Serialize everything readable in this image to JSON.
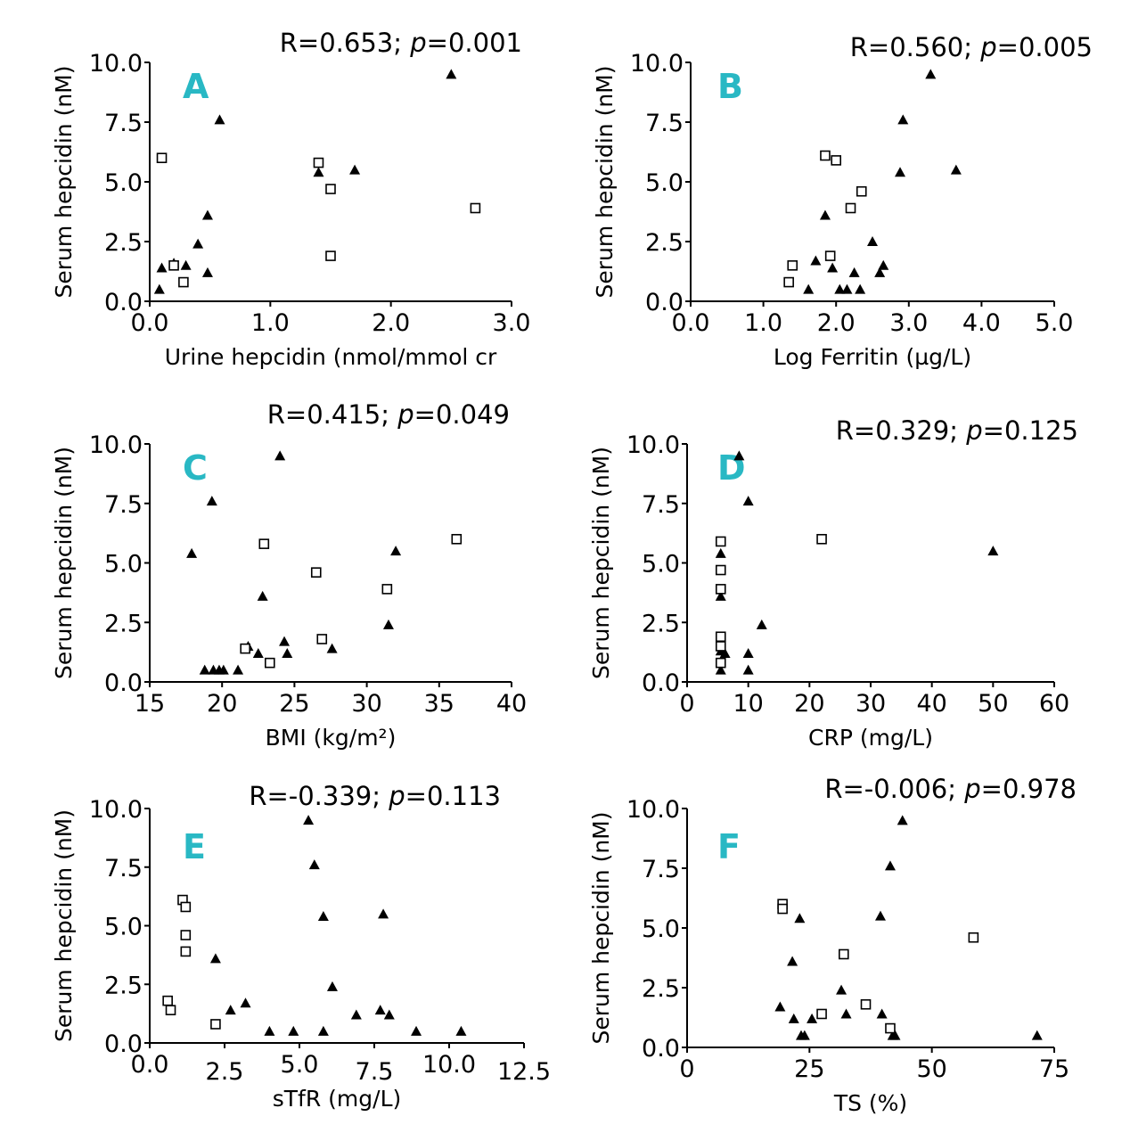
{
  "figure": {
    "colors": {
      "accent": "#29b8c4",
      "ink": "#000000",
      "background": "#ffffff"
    }
  },
  "chart_data": [
    {
      "type": "scatter",
      "panel": "A",
      "stat": {
        "r": "R=0.653;",
        "p_label": "p",
        "p_value": "=0.001"
      },
      "xlabel": "Urine hepcidin (nmol/mmol cr",
      "ylabel": "Serum hepcidin (nM)",
      "xlim": [
        0,
        3.0
      ],
      "ylim": [
        0,
        10.0
      ],
      "xticks": [
        0,
        1.0,
        2.0,
        3.0
      ],
      "xtick_labels": [
        "0.0",
        "1.0",
        "2.0",
        "3.0"
      ],
      "yticks": [
        0,
        2.5,
        5.0,
        7.5,
        10.0
      ],
      "ytick_labels": [
        "0.0",
        "2.5",
        "5.0",
        "7.5",
        "10.0"
      ],
      "series": [
        {
          "name": "filled triangles",
          "marker": "triangle",
          "points": [
            [
              0.08,
              0.5
            ],
            [
              0.1,
              1.4
            ],
            [
              0.2,
              1.6
            ],
            [
              0.3,
              1.5
            ],
            [
              0.4,
              2.4
            ],
            [
              0.48,
              3.6
            ],
            [
              0.48,
              1.2
            ],
            [
              0.58,
              7.6
            ],
            [
              1.4,
              5.4
            ],
            [
              1.7,
              5.5
            ],
            [
              2.5,
              9.5
            ]
          ]
        },
        {
          "name": "open squares",
          "marker": "square",
          "points": [
            [
              0.1,
              6.0
            ],
            [
              0.2,
              1.5
            ],
            [
              0.28,
              0.8
            ],
            [
              1.4,
              5.8
            ],
            [
              1.5,
              4.7
            ],
            [
              1.5,
              1.9
            ],
            [
              2.7,
              3.9
            ]
          ]
        }
      ]
    },
    {
      "type": "scatter",
      "panel": "B",
      "stat": {
        "r": "R=0.560;",
        "p_label": "p",
        "p_value": "=0.005"
      },
      "xlabel": "Log Ferritin (µg/L)",
      "ylabel": "Serum hepcidin (nM)",
      "xlim": [
        0,
        5.0
      ],
      "ylim": [
        0,
        10.0
      ],
      "xticks": [
        0,
        1.0,
        2.0,
        3.0,
        4.0,
        5.0
      ],
      "xtick_labels": [
        "0.0",
        "1.0",
        "2.0",
        "3.0",
        "4.0",
        "5.0"
      ],
      "yticks": [
        0,
        2.5,
        5.0,
        7.5,
        10.0
      ],
      "ytick_labels": [
        "0.0",
        "2.5",
        "5.0",
        "7.5",
        "10.0"
      ],
      "series": [
        {
          "name": "filled triangles",
          "marker": "triangle",
          "points": [
            [
              1.62,
              0.5
            ],
            [
              1.72,
              1.7
            ],
            [
              1.85,
              3.6
            ],
            [
              1.95,
              1.4
            ],
            [
              2.05,
              0.5
            ],
            [
              2.15,
              0.5
            ],
            [
              2.25,
              1.2
            ],
            [
              2.33,
              0.5
            ],
            [
              2.5,
              2.5
            ],
            [
              2.6,
              1.2
            ],
            [
              2.65,
              1.5
            ],
            [
              2.88,
              5.4
            ],
            [
              2.92,
              7.6
            ],
            [
              3.3,
              9.5
            ],
            [
              3.65,
              5.5
            ]
          ]
        },
        {
          "name": "open squares",
          "marker": "square",
          "points": [
            [
              1.35,
              0.8
            ],
            [
              1.4,
              1.5
            ],
            [
              1.85,
              6.1
            ],
            [
              1.92,
              1.9
            ],
            [
              2.0,
              5.9
            ],
            [
              2.2,
              3.9
            ],
            [
              2.35,
              4.6
            ]
          ]
        }
      ]
    },
    {
      "type": "scatter",
      "panel": "C",
      "stat": {
        "r": "R=0.415;",
        "p_label": "p",
        "p_value": "=0.049"
      },
      "xlabel": "BMI (kg/m²)",
      "ylabel": "Serum hepcidin (nM)",
      "xlim": [
        15,
        40
      ],
      "ylim": [
        0,
        10.0
      ],
      "xticks": [
        15,
        20,
        25,
        30,
        35,
        40
      ],
      "xtick_labels": [
        "15",
        "20",
        "25",
        "30",
        "35",
        "40"
      ],
      "yticks": [
        0,
        2.5,
        5.0,
        7.5,
        10.0
      ],
      "ytick_labels": [
        "0.0",
        "2.5",
        "5.0",
        "7.5",
        "10.0"
      ],
      "series": [
        {
          "name": "filled triangles",
          "marker": "triangle",
          "points": [
            [
              17.9,
              5.4
            ],
            [
              18.8,
              0.5
            ],
            [
              19.3,
              7.6
            ],
            [
              19.4,
              0.5
            ],
            [
              19.8,
              0.5
            ],
            [
              20.1,
              0.5
            ],
            [
              21.1,
              0.5
            ],
            [
              21.8,
              1.5
            ],
            [
              22.5,
              1.2
            ],
            [
              22.8,
              3.6
            ],
            [
              24.0,
              9.5
            ],
            [
              24.3,
              1.7
            ],
            [
              24.5,
              1.2
            ],
            [
              27.6,
              1.4
            ],
            [
              31.5,
              2.4
            ],
            [
              32.0,
              5.5
            ]
          ]
        },
        {
          "name": "open squares",
          "marker": "square",
          "points": [
            [
              21.6,
              1.4
            ],
            [
              22.9,
              5.8
            ],
            [
              23.3,
              0.8
            ],
            [
              26.5,
              4.6
            ],
            [
              26.9,
              1.8
            ],
            [
              31.4,
              3.9
            ],
            [
              36.2,
              6.0
            ]
          ]
        }
      ]
    },
    {
      "type": "scatter",
      "panel": "D",
      "stat": {
        "r": "R=0.329;",
        "p_label": "p",
        "p_value": "=0.125"
      },
      "xlabel": "CRP (mg/L)",
      "ylabel": "Serum hepcidin (nM)",
      "xlim": [
        0,
        60
      ],
      "ylim": [
        0,
        10.0
      ],
      "xticks": [
        0,
        10,
        20,
        30,
        40,
        50,
        60
      ],
      "xtick_labels": [
        "0",
        "10",
        "20",
        "30",
        "40",
        "50",
        "60"
      ],
      "yticks": [
        0,
        2.5,
        5.0,
        7.5,
        10.0
      ],
      "ytick_labels": [
        "0.0",
        "2.5",
        "5.0",
        "7.5",
        "10.0"
      ],
      "series": [
        {
          "name": "filled triangles",
          "marker": "triangle",
          "points": [
            [
              5.5,
              5.4
            ],
            [
              5.5,
              3.6
            ],
            [
              5.5,
              1.5
            ],
            [
              5.5,
              1.3
            ],
            [
              5.5,
              0.5
            ],
            [
              6.2,
              1.2
            ],
            [
              8.5,
              9.5
            ],
            [
              10.0,
              7.6
            ],
            [
              10.0,
              1.2
            ],
            [
              10.0,
              0.5
            ],
            [
              12.2,
              2.4
            ],
            [
              50.0,
              5.5
            ]
          ]
        },
        {
          "name": "open squares",
          "marker": "square",
          "points": [
            [
              5.5,
              5.9
            ],
            [
              5.5,
              4.7
            ],
            [
              5.5,
              3.9
            ],
            [
              5.5,
              1.9
            ],
            [
              5.5,
              1.5
            ],
            [
              5.5,
              0.8
            ],
            [
              22.0,
              6.0
            ]
          ]
        }
      ]
    },
    {
      "type": "scatter",
      "panel": "E",
      "stat": {
        "r": "R=-0.339;",
        "p_label": "p",
        "p_value": "=0.113"
      },
      "xlabel": "sTfR (mg/L)",
      "ylabel": "Serum hepcidin (nM)",
      "xlim": [
        0,
        12.5
      ],
      "ylim": [
        0,
        10.0
      ],
      "xticks": [
        0,
        2.5,
        5.0,
        7.5,
        10.0,
        12.5
      ],
      "xtick_labels": [
        "0.0",
        "2.5",
        "5.0",
        "7.5",
        "10.0",
        "12.5"
      ],
      "yticks": [
        0,
        2.5,
        5.0,
        7.5,
        10.0
      ],
      "ytick_labels": [
        "0.0",
        "2.5",
        "5.0",
        "7.5",
        "10.0"
      ],
      "series": [
        {
          "name": "filled triangles",
          "marker": "triangle",
          "points": [
            [
              2.2,
              3.6
            ],
            [
              2.7,
              1.4
            ],
            [
              3.2,
              1.7
            ],
            [
              4.0,
              0.5
            ],
            [
              4.8,
              0.5
            ],
            [
              5.3,
              9.5
            ],
            [
              5.5,
              7.6
            ],
            [
              5.8,
              5.4
            ],
            [
              5.8,
              0.5
            ],
            [
              6.1,
              2.4
            ],
            [
              6.9,
              1.2
            ],
            [
              7.7,
              1.4
            ],
            [
              7.8,
              5.5
            ],
            [
              8.0,
              1.2
            ],
            [
              8.9,
              0.5
            ],
            [
              10.4,
              0.5
            ]
          ]
        },
        {
          "name": "open squares",
          "marker": "square",
          "points": [
            [
              0.6,
              1.8
            ],
            [
              0.7,
              1.4
            ],
            [
              1.1,
              6.1
            ],
            [
              1.2,
              5.8
            ],
            [
              1.2,
              4.6
            ],
            [
              1.2,
              3.9
            ],
            [
              2.2,
              0.8
            ]
          ]
        }
      ]
    },
    {
      "type": "scatter",
      "panel": "F",
      "stat": {
        "r": "R=-0.006;",
        "p_label": "p",
        "p_value": "=0.978"
      },
      "xlabel": "TS (%)",
      "ylabel": "Serum hepcidin (nM)",
      "xlim": [
        0,
        75
      ],
      "ylim": [
        0,
        10.0
      ],
      "xticks": [
        0,
        25,
        50,
        75
      ],
      "xtick_labels": [
        "0",
        "25",
        "50",
        "75"
      ],
      "yticks": [
        0,
        2.5,
        5.0,
        7.5,
        10.0
      ],
      "ytick_labels": [
        "0.0",
        "2.5",
        "5.0",
        "7.5",
        "10.0"
      ],
      "series": [
        {
          "name": "filled triangles",
          "marker": "triangle",
          "points": [
            [
              19.0,
              1.7
            ],
            [
              21.5,
              3.6
            ],
            [
              21.8,
              1.2
            ],
            [
              23.0,
              5.4
            ],
            [
              23.3,
              0.5
            ],
            [
              24.0,
              0.5
            ],
            [
              25.5,
              1.2
            ],
            [
              31.5,
              2.4
            ],
            [
              32.5,
              1.4
            ],
            [
              39.5,
              5.5
            ],
            [
              39.8,
              1.4
            ],
            [
              41.5,
              7.6
            ],
            [
              42.0,
              0.5
            ],
            [
              42.5,
              0.5
            ],
            [
              44.0,
              9.5
            ],
            [
              71.5,
              0.5
            ]
          ]
        },
        {
          "name": "open squares",
          "marker": "square",
          "points": [
            [
              19.5,
              6.0
            ],
            [
              19.5,
              5.8
            ],
            [
              27.5,
              1.4
            ],
            [
              32.0,
              3.9
            ],
            [
              36.5,
              1.8
            ],
            [
              41.5,
              0.8
            ],
            [
              58.5,
              4.6
            ]
          ]
        }
      ]
    }
  ]
}
